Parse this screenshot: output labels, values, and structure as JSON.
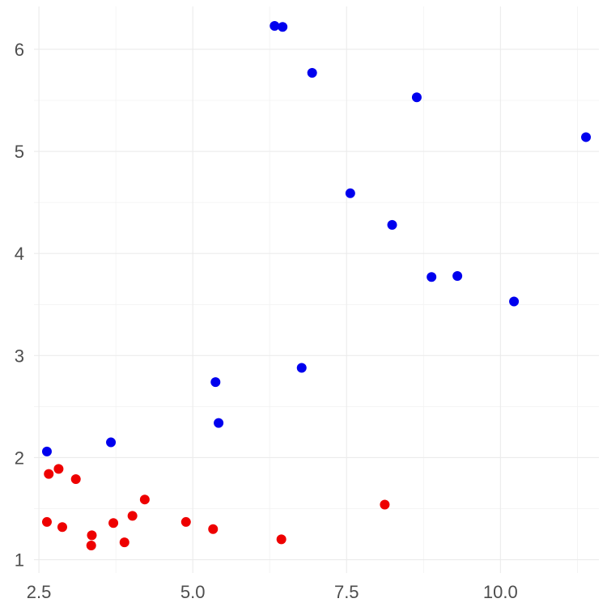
{
  "chart_data": {
    "type": "scatter",
    "title": "",
    "xlabel": "",
    "ylabel": "",
    "xlim": [
      2.42,
      11.6
    ],
    "ylim": [
      0.87,
      6.42
    ],
    "x_ticks": [
      2.5,
      5.0,
      7.5,
      10.0
    ],
    "x_tick_labels": [
      "2.5",
      "5.0",
      "7.5",
      "10.0"
    ],
    "y_ticks": [
      1,
      2,
      3,
      4,
      5,
      6
    ],
    "y_tick_labels": [
      "1",
      "2",
      "3",
      "4",
      "5",
      "6"
    ],
    "grid": true,
    "legend": "none",
    "series": [
      {
        "color": "#0000ee",
        "points": [
          {
            "x": 6.33,
            "y": 6.23
          },
          {
            "x": 6.46,
            "y": 6.22
          },
          {
            "x": 6.94,
            "y": 5.77
          },
          {
            "x": 8.64,
            "y": 5.53
          },
          {
            "x": 11.39,
            "y": 5.14
          },
          {
            "x": 7.56,
            "y": 4.59
          },
          {
            "x": 8.24,
            "y": 4.28
          },
          {
            "x": 8.88,
            "y": 3.77
          },
          {
            "x": 9.3,
            "y": 3.78
          },
          {
            "x": 10.22,
            "y": 3.53
          },
          {
            "x": 6.77,
            "y": 2.88
          },
          {
            "x": 5.37,
            "y": 2.74
          },
          {
            "x": 5.42,
            "y": 2.34
          },
          {
            "x": 3.67,
            "y": 2.15
          },
          {
            "x": 2.63,
            "y": 2.06
          }
        ]
      },
      {
        "color": "#ee0000",
        "points": [
          {
            "x": 2.66,
            "y": 1.84
          },
          {
            "x": 2.82,
            "y": 1.89
          },
          {
            "x": 3.1,
            "y": 1.79
          },
          {
            "x": 4.22,
            "y": 1.59
          },
          {
            "x": 8.12,
            "y": 1.54
          },
          {
            "x": 2.63,
            "y": 1.37
          },
          {
            "x": 2.88,
            "y": 1.32
          },
          {
            "x": 3.71,
            "y": 1.36
          },
          {
            "x": 4.02,
            "y": 1.43
          },
          {
            "x": 4.89,
            "y": 1.37
          },
          {
            "x": 5.33,
            "y": 1.3
          },
          {
            "x": 3.36,
            "y": 1.24
          },
          {
            "x": 3.35,
            "y": 1.14
          },
          {
            "x": 3.89,
            "y": 1.17
          },
          {
            "x": 6.44,
            "y": 1.2
          }
        ]
      }
    ]
  }
}
